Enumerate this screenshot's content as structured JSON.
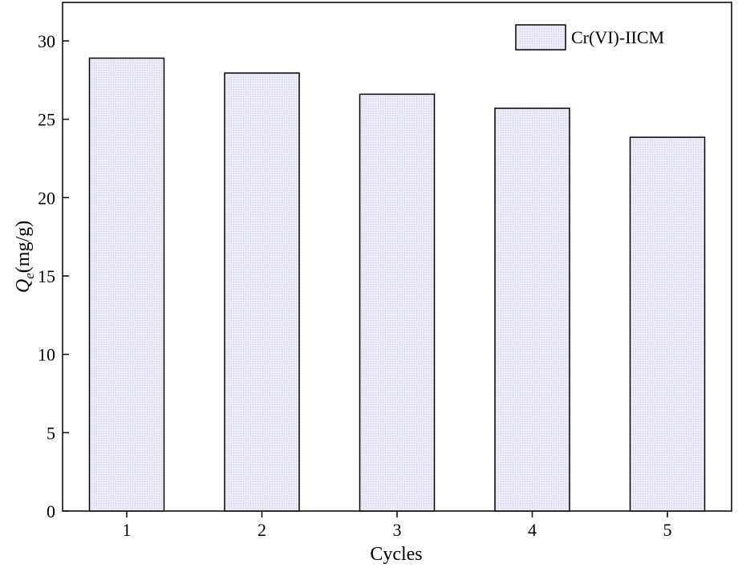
{
  "chart_data": {
    "type": "bar",
    "categories": [
      "1",
      "2",
      "3",
      "4",
      "5"
    ],
    "series": [
      {
        "name": "Cr(VI)-IICM",
        "values": [
          28.9,
          27.95,
          26.6,
          25.7,
          23.85
        ]
      }
    ],
    "xlabel": "Cycles",
    "ylabel": {
      "main": "Q",
      "subscript": "e",
      "unit": "(mg/g)"
    },
    "ylim": [
      0,
      32
    ],
    "yticks": [
      0,
      5,
      10,
      15,
      20,
      25,
      30
    ],
    "grid": false,
    "legend_position": "top-right",
    "bar_fill": "#e8e8f6",
    "bar_stroke": "#000000"
  }
}
